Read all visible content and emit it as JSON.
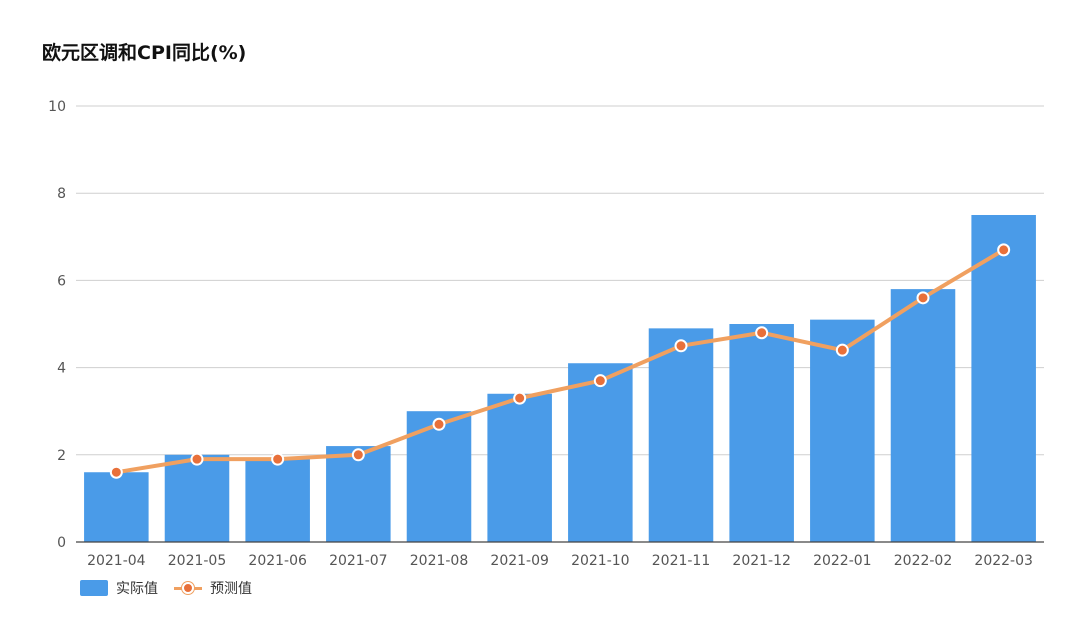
{
  "chart_title": "欧元区调和CPI同比(%)",
  "colors": {
    "bar": "#4a9be8",
    "line": "#f0a060",
    "point": "#e8703a",
    "grid": "#cfcfcf",
    "axis": "#444444",
    "tick_text": "#555555"
  },
  "legend": {
    "actual_label": "实际值",
    "forecast_label": "预测值",
    "position": "bottom-left"
  },
  "chart_data": {
    "type": "bar",
    "title": "欧元区调和CPI同比(%)",
    "xlabel": "",
    "ylabel": "",
    "ylim": [
      0,
      10
    ],
    "yticks": [
      0,
      2,
      4,
      6,
      8,
      10
    ],
    "grid": true,
    "categories": [
      "2021-04",
      "2021-05",
      "2021-06",
      "2021-07",
      "2021-08",
      "2021-09",
      "2021-10",
      "2021-11",
      "2021-12",
      "2022-01",
      "2022-02",
      "2022-03"
    ],
    "series": [
      {
        "name": "实际值",
        "type": "bar",
        "values": [
          1.6,
          2.0,
          1.9,
          2.2,
          3.0,
          3.4,
          4.1,
          4.9,
          5.0,
          5.1,
          5.8,
          7.5
        ]
      },
      {
        "name": "预测值",
        "type": "line",
        "values": [
          1.6,
          1.9,
          1.9,
          2.0,
          2.7,
          3.3,
          3.7,
          4.5,
          4.8,
          4.4,
          5.6,
          6.7
        ]
      }
    ]
  }
}
